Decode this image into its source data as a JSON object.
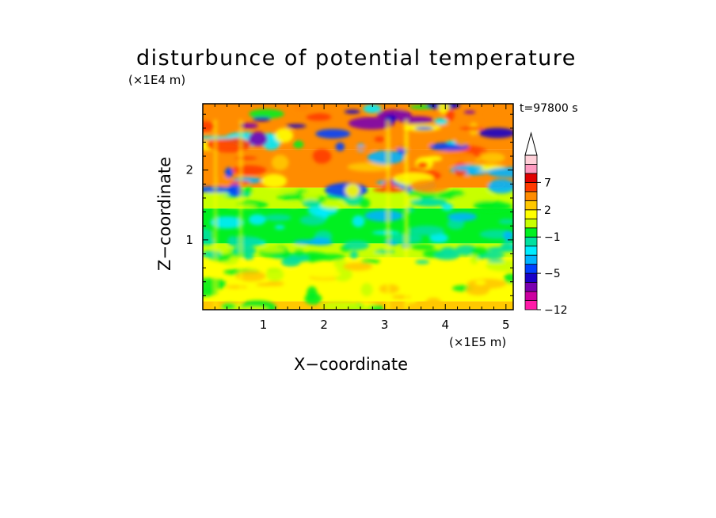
{
  "title": "disturbunce of potential temperature",
  "time_label": "t=97800 s",
  "chart_data": {
    "type": "heatmap",
    "title": "disturbunce of potential temperature",
    "xlabel": "X−coordinate",
    "ylabel": "Z−coordinate",
    "x_unit": "(×1E5 m)",
    "y_unit": "(×1E4 m)",
    "xlim": [
      0,
      5.12
    ],
    "ylim": [
      0,
      2.95
    ],
    "x_ticks": [
      1,
      2,
      3,
      4,
      5
    ],
    "y_ticks": [
      1,
      2
    ],
    "colorbar": {
      "tick_labels": [
        "7",
        "2",
        "−1",
        "−5",
        "−12"
      ],
      "levels": [
        -12,
        -10,
        -8,
        -6,
        -5,
        -4,
        -3,
        -2,
        -1,
        0,
        1,
        2,
        3,
        5,
        7,
        9,
        11
      ],
      "colors": [
        "#ff1aa8",
        "#cc00a0",
        "#7a00b0",
        "#1a00c8",
        "#0040ff",
        "#00b4ff",
        "#00ecff",
        "#00e0a0",
        "#00f020",
        "#c8ff00",
        "#ffff00",
        "#ffc800",
        "#ff8c00",
        "#ff3a00",
        "#e00000",
        "#ff9ac0",
        "#ffd0d8"
      ],
      "extend": "max"
    },
    "layers": [
      {
        "z_range": [
          0.0,
          0.12
        ],
        "dominant_value": 2
      },
      {
        "z_range": [
          0.12,
          0.75
        ],
        "dominant_value": 1.5
      },
      {
        "z_range": [
          0.75,
          0.95
        ],
        "dominant_value": 0.5
      },
      {
        "z_range": [
          0.95,
          1.45
        ],
        "dominant_value": -1
      },
      {
        "z_range": [
          1.45,
          1.75
        ],
        "dominant_value": 0.5
      },
      {
        "z_range": [
          1.75,
          2.3
        ],
        "dominant_value": 3
      },
      {
        "z_range": [
          2.3,
          2.95
        ],
        "dominant_value": 4
      }
    ]
  }
}
